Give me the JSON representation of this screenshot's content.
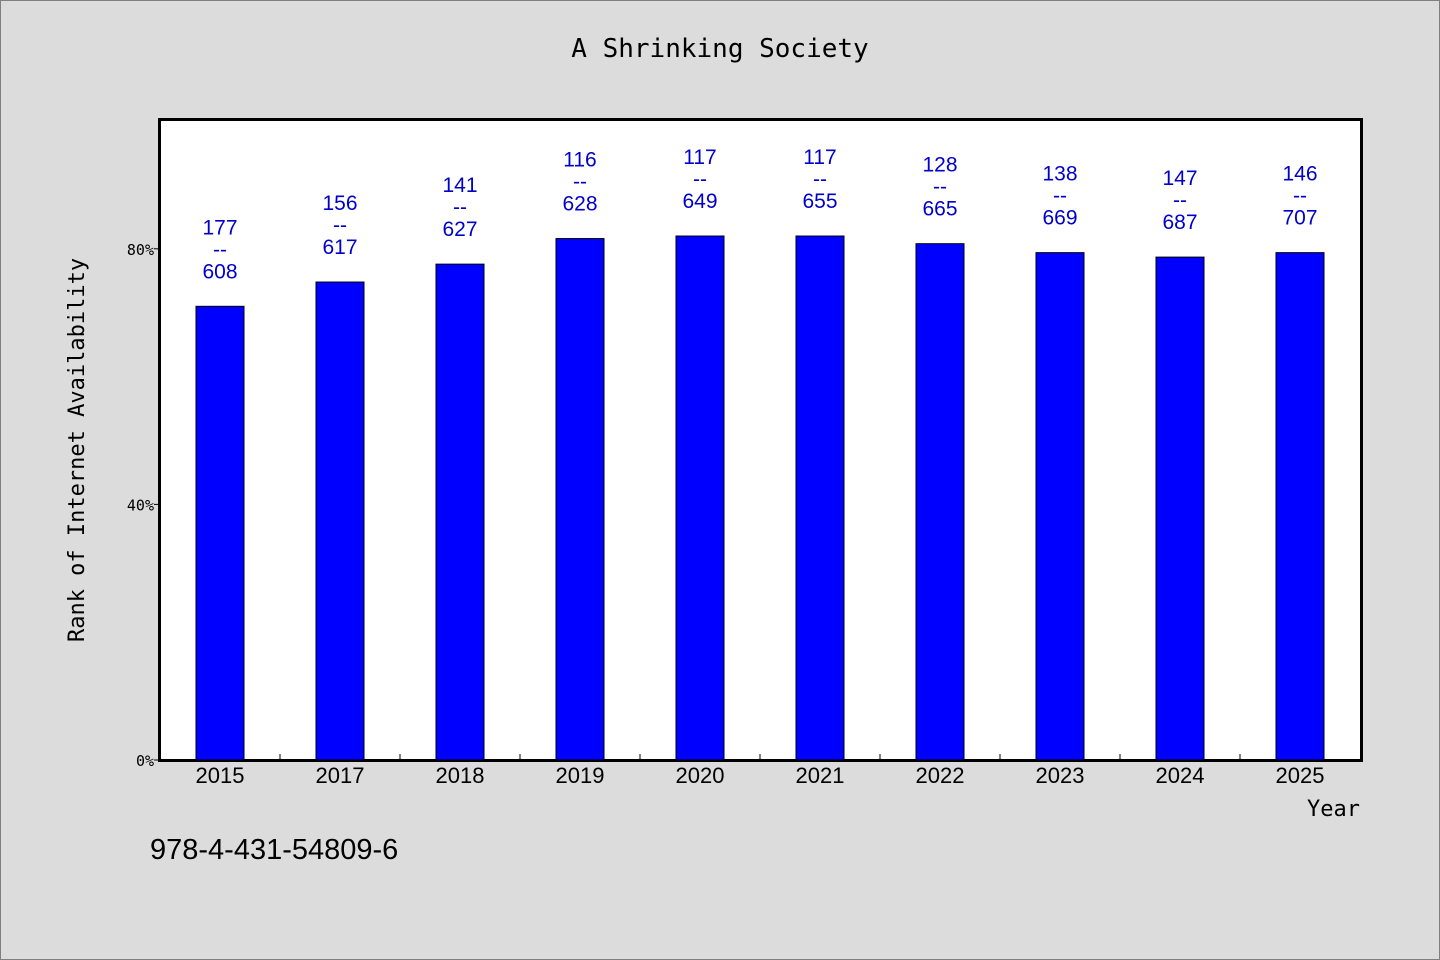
{
  "chart_data": {
    "type": "bar",
    "title": "A Shrinking Society",
    "xlabel": "Year",
    "ylabel": "Rank of Internet Availability",
    "ylim": [
      0,
      100
    ],
    "yticks": [
      0,
      40,
      80
    ],
    "ytick_labels": [
      "0%",
      "40%",
      "80%"
    ],
    "grid": false,
    "bar_color": "#0000ff",
    "label_color": "#0000cc",
    "categories": [
      "2015",
      "2017",
      "2018",
      "2019",
      "2020",
      "2021",
      "2022",
      "2023",
      "2024",
      "2025"
    ],
    "values": [
      71,
      74.8,
      77.6,
      81.6,
      82,
      82,
      80.8,
      79.4,
      78.7,
      79.4
    ],
    "annotations": [
      {
        "top": "177",
        "sep": "--",
        "bottom": "608"
      },
      {
        "top": "156",
        "sep": "--",
        "bottom": "617"
      },
      {
        "top": "141",
        "sep": "--",
        "bottom": "627"
      },
      {
        "top": "116",
        "sep": "--",
        "bottom": "628"
      },
      {
        "top": "117",
        "sep": "--",
        "bottom": "649"
      },
      {
        "top": "117",
        "sep": "--",
        "bottom": "655"
      },
      {
        "top": "128",
        "sep": "--",
        "bottom": "665"
      },
      {
        "top": "138",
        "sep": "--",
        "bottom": "669"
      },
      {
        "top": "147",
        "sep": "--",
        "bottom": "687"
      },
      {
        "top": "146",
        "sep": "--",
        "bottom": "707"
      }
    ]
  },
  "footer": {
    "code": "978-4-431-54809-6"
  }
}
